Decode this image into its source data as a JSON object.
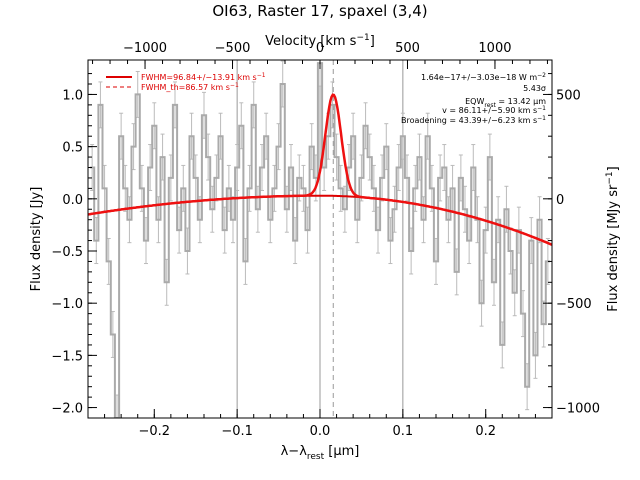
{
  "chart_data": {
    "type": "line",
    "title": "OI63, Raster 17, spaxel (3,4)",
    "xlabel": "λ-λrest [μm]",
    "ylabel": "Flux density [Jy]",
    "top_axis_label": "Velocity [km s-1]",
    "right_axis_label": "Flux density [MJy sr-1]",
    "xlim": [
      -0.28,
      0.28
    ],
    "ylim": [
      -2.1,
      1.33
    ],
    "top_xlim": [
      -1326,
      1326
    ],
    "right_ylim": [
      -1050,
      665
    ],
    "x_ticks": [
      -0.2,
      -0.1,
      0.0,
      0.1,
      0.2
    ],
    "x_tick_labels": [
      "−0.2",
      "−0.1",
      "0.0",
      "0.1",
      "0.2"
    ],
    "y_ticks": [
      -2.0,
      -1.5,
      -1.0,
      -0.5,
      0.0,
      0.5,
      1.0
    ],
    "y_tick_labels": [
      "−2.0",
      "−1.5",
      "−1.0",
      "−0.5",
      "0.0",
      "0.5",
      "1.0"
    ],
    "top_ticks": [
      -1000,
      -500,
      0,
      500,
      1000
    ],
    "top_tick_labels": [
      "−1000",
      "−500",
      "0",
      "500",
      "1000"
    ],
    "right_ticks": [
      -1000,
      -500,
      0,
      500
    ],
    "right_tick_labels": [
      "−1000",
      "−500",
      "0",
      "500"
    ],
    "vertical_lines": [
      -0.1,
      0.0,
      0.1
    ],
    "dashed_line": 0.016,
    "legend": [
      {
        "label": "FWHM=96.84+/-13.91 km s-1",
        "style": "solid",
        "color": "#dd0000"
      },
      {
        "label": "FWHM_th=86.57 km s-1",
        "style": "dashed",
        "color": "#dd0000"
      }
    ],
    "annotations": [
      "1.64e-17+/-3.03e-18 W m-2",
      "5.43σ",
      "EQWrest = 13.42 μm",
      "v = 86.11+/-5.90 km s-1",
      "Broadening = 43.39+/-6.23 km s-1"
    ],
    "fit": {
      "baseline_peak_x": 0.0,
      "baseline_peak_y": 0.03,
      "baseline_left_y": -0.15,
      "baseline_right_y": -0.44,
      "line_center": 0.016,
      "line_amplitude": 0.97,
      "line_sigma": 0.0095
    },
    "series": [
      {
        "color": "#aaaaaa",
        "x": [
          -0.275,
          -0.27,
          -0.265,
          -0.26,
          -0.255,
          -0.25,
          -0.245,
          -0.24,
          -0.235,
          -0.23,
          -0.225,
          -0.22,
          -0.215,
          -0.21,
          -0.205,
          -0.2,
          -0.195,
          -0.19,
          -0.185,
          -0.18,
          -0.175,
          -0.17,
          -0.165,
          -0.16,
          -0.155,
          -0.15,
          -0.145,
          -0.14,
          -0.135,
          -0.13,
          -0.125,
          -0.12,
          -0.115,
          -0.11,
          -0.105,
          -0.1,
          -0.095,
          -0.09,
          -0.085,
          -0.08,
          -0.075,
          -0.07,
          -0.065,
          -0.06,
          -0.055,
          -0.05,
          -0.045,
          -0.04,
          -0.035,
          -0.03,
          -0.025,
          -0.02,
          -0.015,
          -0.01,
          -0.005,
          0.0,
          0.005,
          0.01,
          0.015,
          0.02,
          0.025,
          0.03,
          0.035,
          0.04,
          0.045,
          0.05,
          0.055,
          0.06,
          0.065,
          0.07,
          0.075,
          0.08,
          0.085,
          0.09,
          0.095,
          0.1,
          0.105,
          0.11,
          0.115,
          0.12,
          0.125,
          0.13,
          0.135,
          0.14,
          0.145,
          0.15,
          0.155,
          0.16,
          0.165,
          0.17,
          0.175,
          0.18,
          0.185,
          0.19,
          0.195,
          0.2,
          0.205,
          0.21,
          0.215,
          0.22,
          0.225,
          0.23,
          0.235,
          0.24,
          0.245,
          0.25,
          0.255,
          0.26,
          0.265,
          0.27,
          0.275
        ],
        "y": [
          0.3,
          -0.4,
          0.9,
          0.1,
          -0.6,
          -1.3,
          -2.1,
          0.6,
          0.1,
          -0.2,
          0.5,
          1.0,
          0.1,
          -0.4,
          0.3,
          0.7,
          -0.2,
          0.4,
          -0.8,
          0.2,
          0.9,
          -0.3,
          0.1,
          -0.5,
          0.6,
          0.2,
          -0.2,
          0.8,
          0.4,
          -0.1,
          0.2,
          0.6,
          -0.3,
          0.1,
          -0.2,
          0.3,
          0.7,
          -0.6,
          0.1,
          0.9,
          -0.1,
          0.3,
          0.6,
          -0.2,
          0.1,
          0.5,
          1.1,
          -0.1,
          0.3,
          -0.4,
          0.2,
          0.1,
          -0.3,
          0.5,
          0.2,
          1.3,
          0.3,
          0.6,
          0.9,
          0.4,
          0.1,
          -0.1,
          0.3,
          0.6,
          -0.2,
          0.2,
          0.7,
          0.4,
          0.1,
          -0.3,
          0.2,
          0.5,
          -0.4,
          -0.1,
          0.3,
          0.6,
          0.2,
          -0.5,
          0.1,
          0.4,
          -0.2,
          0.6,
          0.1,
          -0.6,
          0.2,
          0.3,
          -0.2,
          0.1,
          -0.7,
          0.2,
          -0.1,
          -0.4,
          0.3,
          -0.2,
          -1.0,
          -0.3,
          0.4,
          -0.8,
          -0.2,
          -1.4,
          -0.1,
          -0.5,
          -0.9,
          -0.3,
          -1.1,
          -1.8,
          -0.4,
          -1.5,
          -0.2,
          -1.2,
          -0.6
        ],
        "err": 0.22
      }
    ]
  }
}
